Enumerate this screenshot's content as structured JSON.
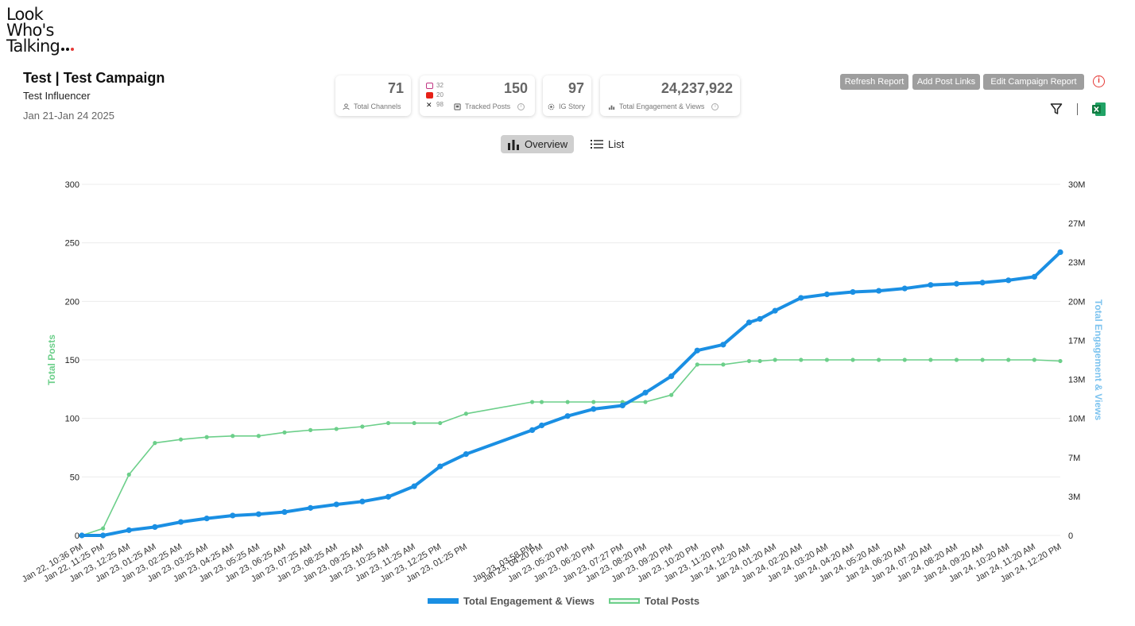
{
  "logo": {
    "line1": "Look",
    "line2": "Who's",
    "line3": "Talking",
    "accent": "#e53935"
  },
  "header": {
    "title": "Test | Test Campaign",
    "influencer": "Test Influencer",
    "date_range": "Jan 21-Jan 24 2025"
  },
  "stats": {
    "channels": {
      "value": "71",
      "label": "Total Channels",
      "icon": "users-icon"
    },
    "tracked": {
      "value": "150",
      "label": "Tracked Posts",
      "icon": "posts-icon",
      "platforms": [
        {
          "name": "instagram-icon",
          "count": "32",
          "color": "#c13584"
        },
        {
          "name": "youtube-icon",
          "count": "20",
          "color": "#e62117"
        },
        {
          "name": "x-icon",
          "count": "98",
          "color": "#111111"
        }
      ]
    },
    "story": {
      "value": "97",
      "label": "IG Story",
      "icon": "story-icon"
    },
    "engagement": {
      "value": "24,237,922",
      "label": "Total Engagement & Views",
      "icon": "engagement-icon"
    }
  },
  "actions": {
    "refresh": "Refresh Report",
    "add_links": "Add Post Links",
    "edit": "Edit Campaign Report"
  },
  "tabs": {
    "overview": "Overview",
    "list": "List"
  },
  "colors": {
    "engagement": "#1a8fe3",
    "posts": "#6ccf8a",
    "posts_axis": "#6ccf8a",
    "eng_axis": "#7cc3ef"
  },
  "chart_data": {
    "type": "line",
    "ylabel_left": "Total Posts",
    "ylabel_right": "Total Engagement & Views",
    "ylim_left": [
      0,
      300
    ],
    "ylim_right": [
      0,
      30000000
    ],
    "left_ticks": [
      "0",
      "50",
      "100",
      "150",
      "200",
      "250",
      "300"
    ],
    "right_ticks": [
      "0",
      "3M",
      "7M",
      "10M",
      "13M",
      "17M",
      "20M",
      "23M",
      "27M",
      "30M"
    ],
    "legend_position": "bottom",
    "x_labels": [
      "Jan 22, 10:36 PM",
      "Jan 22, 11:25 PM",
      "Jan 23, 12:25 AM",
      "Jan 23, 01:25 AM",
      "Jan 23, 02:25 AM",
      "Jan 23, 03:25 AM",
      "Jan 23, 04:25 AM",
      "Jan 23, 05:25 AM",
      "Jan 23, 06:25 AM",
      "Jan 23, 07:25 AM",
      "Jan 23, 08:25 AM",
      "Jan 23, 09:25 AM",
      "Jan 23, 10:25 AM",
      "Jan 23, 11:25 AM",
      "Jan 23, 12:25 PM",
      "Jan 23, 01:25 PM",
      "Jan 23, 03:58 PM",
      "Jan 23, 04:20 PM",
      "Jan 23, 05:20 PM",
      "Jan 23, 06:20 PM",
      "Jan 23, 07:27 PM",
      "Jan 23, 08:20 PM",
      "Jan 23, 09:20 PM",
      "Jan 23, 10:20 PM",
      "Jan 23, 11:20 PM",
      "Jan 24, 12:20 AM",
      "Jan 24, 01:20 AM",
      "Jan 24, 02:20 AM",
      "Jan 24, 03:20 AM",
      "Jan 24, 04:20 AM",
      "Jan 24, 05:20 AM",
      "Jan 24, 06:20 AM",
      "Jan 24, 07:20 AM",
      "Jan 24, 08:20 AM",
      "Jan 24, 09:20 AM",
      "Jan 24, 10:20 AM",
      "Jan 24, 11:20 AM",
      "Jan 24, 12:20 PM"
    ],
    "x_timestamps": [
      "2025-01-22T22:36",
      "2025-01-22T23:25",
      "2025-01-23T00:25",
      "2025-01-23T01:25",
      "2025-01-23T02:25",
      "2025-01-23T03:25",
      "2025-01-23T04:25",
      "2025-01-23T05:25",
      "2025-01-23T06:25",
      "2025-01-23T07:25",
      "2025-01-23T08:25",
      "2025-01-23T09:25",
      "2025-01-23T10:25",
      "2025-01-23T11:25",
      "2025-01-23T12:25",
      "2025-01-23T13:25",
      "2025-01-23T15:58",
      "2025-01-23T16:20",
      "2025-01-23T17:20",
      "2025-01-23T18:20",
      "2025-01-23T19:27",
      "2025-01-23T20:20",
      "2025-01-23T21:20",
      "2025-01-23T22:20",
      "2025-01-23T23:20",
      "2025-01-24T00:20",
      "2025-01-24T01:20",
      "2025-01-24T02:20",
      "2025-01-24T03:20",
      "2025-01-24T04:20",
      "2025-01-24T05:20",
      "2025-01-24T06:20",
      "2025-01-24T07:20",
      "2025-01-24T08:20",
      "2025-01-24T09:20",
      "2025-01-24T10:20",
      "2025-01-24T11:20",
      "2025-01-24T12:20"
    ],
    "series": [
      {
        "name": "Total Engagement & Views",
        "axis": "right",
        "color": "#1a8fe3",
        "x": [
          "2025-01-22T22:36",
          "2025-01-22T23:25",
          "2025-01-23T00:25",
          "2025-01-23T01:25",
          "2025-01-23T02:25",
          "2025-01-23T03:25",
          "2025-01-23T04:25",
          "2025-01-23T05:25",
          "2025-01-23T06:25",
          "2025-01-23T07:25",
          "2025-01-23T08:25",
          "2025-01-23T09:25",
          "2025-01-23T10:25",
          "2025-01-23T11:25",
          "2025-01-23T12:25",
          "2025-01-23T13:25",
          "2025-01-23T15:58",
          "2025-01-23T16:20",
          "2025-01-23T17:20",
          "2025-01-23T18:20",
          "2025-01-23T19:27",
          "2025-01-23T20:20",
          "2025-01-23T21:20",
          "2025-01-23T22:20",
          "2025-01-23T23:20",
          "2025-01-24T00:20",
          "2025-01-24T00:45",
          "2025-01-24T01:20",
          "2025-01-24T02:20",
          "2025-01-24T03:20",
          "2025-01-24T04:20",
          "2025-01-24T05:20",
          "2025-01-24T06:20",
          "2025-01-24T07:20",
          "2025-01-24T08:20",
          "2025-01-24T09:20",
          "2025-01-24T10:20",
          "2025-01-24T11:20",
          "2025-01-24T12:20"
        ],
        "values": [
          0,
          0,
          450000,
          720000,
          1150000,
          1450000,
          1700000,
          1820000,
          2000000,
          2350000,
          2650000,
          2900000,
          3300000,
          4200000,
          5900000,
          6950000,
          9000000,
          9400000,
          10200000,
          10800000,
          11100000,
          12200000,
          13600000,
          15800000,
          16300000,
          18200000,
          18500000,
          19200000,
          20300000,
          20600000,
          20800000,
          20900000,
          21100000,
          21400000,
          21500000,
          21600000,
          21800000,
          22100000,
          24200000
        ]
      },
      {
        "name": "Total Posts",
        "axis": "left",
        "color": "#6ccf8a",
        "x": [
          "2025-01-22T22:36",
          "2025-01-22T23:25",
          "2025-01-23T00:25",
          "2025-01-23T01:25",
          "2025-01-23T02:25",
          "2025-01-23T03:25",
          "2025-01-23T04:25",
          "2025-01-23T05:25",
          "2025-01-23T06:25",
          "2025-01-23T07:25",
          "2025-01-23T08:25",
          "2025-01-23T09:25",
          "2025-01-23T10:25",
          "2025-01-23T11:25",
          "2025-01-23T12:25",
          "2025-01-23T13:25",
          "2025-01-23T15:58",
          "2025-01-23T16:20",
          "2025-01-23T17:20",
          "2025-01-23T18:20",
          "2025-01-23T19:27",
          "2025-01-23T20:20",
          "2025-01-23T21:20",
          "2025-01-23T22:20",
          "2025-01-23T23:20",
          "2025-01-24T00:20",
          "2025-01-24T00:45",
          "2025-01-24T01:20",
          "2025-01-24T02:20",
          "2025-01-24T03:20",
          "2025-01-24T04:20",
          "2025-01-24T05:20",
          "2025-01-24T06:20",
          "2025-01-24T07:20",
          "2025-01-24T08:20",
          "2025-01-24T09:20",
          "2025-01-24T10:20",
          "2025-01-24T11:20",
          "2025-01-24T12:20"
        ],
        "values": [
          0,
          6,
          52,
          79,
          82,
          84,
          85,
          85,
          88,
          90,
          91,
          93,
          96,
          96,
          96,
          104,
          114,
          114,
          114,
          114,
          114,
          114,
          120,
          146,
          146,
          149,
          149,
          150,
          150,
          150,
          150,
          150,
          150,
          150,
          150,
          150,
          150,
          150,
          149
        ]
      }
    ]
  }
}
